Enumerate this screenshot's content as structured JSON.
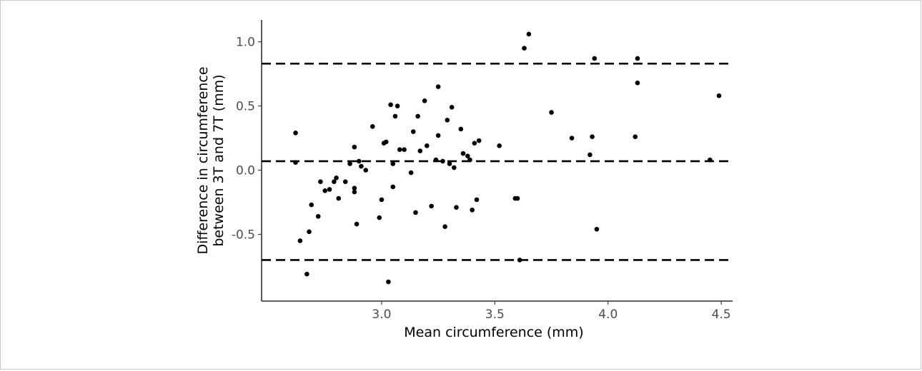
{
  "chart_data": {
    "type": "scatter",
    "title": "",
    "xlabel": "Mean circumference (mm)",
    "ylabel_lines": [
      "Difference in circumference",
      "between 3T and 7T (mm)"
    ],
    "xlim": [
      2.47,
      4.55
    ],
    "ylim": [
      -1.02,
      1.17
    ],
    "x_ticks": [
      {
        "value": 3.0,
        "label": "3.0"
      },
      {
        "value": 3.5,
        "label": "3.5"
      },
      {
        "value": 4.0,
        "label": "4.0"
      },
      {
        "value": 4.5,
        "label": "4.5"
      }
    ],
    "y_ticks": [
      {
        "value": 1.0,
        "label": "1.0"
      },
      {
        "value": 0.5,
        "label": "0.5"
      },
      {
        "value": 0.0,
        "label": "0.0"
      },
      {
        "value": -0.5,
        "label": "-0.5"
      }
    ],
    "reference_lines": [
      {
        "name": "upper limit of agreement",
        "y": 0.83
      },
      {
        "name": "mean difference",
        "y": 0.07
      },
      {
        "name": "lower limit of agreement",
        "y": -0.7
      }
    ],
    "grid": false,
    "legend": "none",
    "points": [
      {
        "x": 2.62,
        "y": 0.29
      },
      {
        "x": 2.62,
        "y": 0.06
      },
      {
        "x": 2.64,
        "y": -0.55
      },
      {
        "x": 2.67,
        "y": -0.81
      },
      {
        "x": 2.68,
        "y": -0.48
      },
      {
        "x": 2.69,
        "y": -0.27
      },
      {
        "x": 2.72,
        "y": -0.36
      },
      {
        "x": 2.73,
        "y": -0.09
      },
      {
        "x": 2.75,
        "y": -0.16
      },
      {
        "x": 2.77,
        "y": -0.15
      },
      {
        "x": 2.79,
        "y": -0.09
      },
      {
        "x": 2.8,
        "y": -0.06
      },
      {
        "x": 2.81,
        "y": -0.22
      },
      {
        "x": 2.84,
        "y": -0.09
      },
      {
        "x": 2.86,
        "y": 0.05
      },
      {
        "x": 2.88,
        "y": 0.18
      },
      {
        "x": 2.88,
        "y": -0.14
      },
      {
        "x": 2.88,
        "y": -0.17
      },
      {
        "x": 2.89,
        "y": -0.42
      },
      {
        "x": 2.9,
        "y": 0.07
      },
      {
        "x": 2.91,
        "y": 0.03
      },
      {
        "x": 2.93,
        "y": 0.0
      },
      {
        "x": 2.96,
        "y": 0.34
      },
      {
        "x": 2.99,
        "y": -0.37
      },
      {
        "x": 3.0,
        "y": -0.23
      },
      {
        "x": 3.01,
        "y": 0.21
      },
      {
        "x": 3.02,
        "y": 0.22
      },
      {
        "x": 3.03,
        "y": -0.87
      },
      {
        "x": 3.04,
        "y": 0.51
      },
      {
        "x": 3.05,
        "y": -0.13
      },
      {
        "x": 3.05,
        "y": 0.05
      },
      {
        "x": 3.06,
        "y": 0.42
      },
      {
        "x": 3.07,
        "y": 0.5
      },
      {
        "x": 3.08,
        "y": 0.16
      },
      {
        "x": 3.1,
        "y": 0.16
      },
      {
        "x": 3.13,
        "y": -0.02
      },
      {
        "x": 3.14,
        "y": 0.3
      },
      {
        "x": 3.15,
        "y": -0.33
      },
      {
        "x": 3.16,
        "y": 0.42
      },
      {
        "x": 3.17,
        "y": 0.15
      },
      {
        "x": 3.19,
        "y": 0.54
      },
      {
        "x": 3.2,
        "y": 0.19
      },
      {
        "x": 3.22,
        "y": -0.28
      },
      {
        "x": 3.24,
        "y": 0.08
      },
      {
        "x": 3.25,
        "y": 0.65
      },
      {
        "x": 3.25,
        "y": 0.27
      },
      {
        "x": 3.27,
        "y": 0.07
      },
      {
        "x": 3.28,
        "y": -0.44
      },
      {
        "x": 3.29,
        "y": 0.39
      },
      {
        "x": 3.3,
        "y": 0.05
      },
      {
        "x": 3.31,
        "y": 0.49
      },
      {
        "x": 3.32,
        "y": 0.02
      },
      {
        "x": 3.33,
        "y": -0.29
      },
      {
        "x": 3.35,
        "y": 0.32
      },
      {
        "x": 3.36,
        "y": 0.13
      },
      {
        "x": 3.38,
        "y": 0.11
      },
      {
        "x": 3.39,
        "y": 0.08
      },
      {
        "x": 3.4,
        "y": -0.31
      },
      {
        "x": 3.41,
        "y": 0.21
      },
      {
        "x": 3.42,
        "y": -0.23
      },
      {
        "x": 3.43,
        "y": 0.23
      },
      {
        "x": 3.52,
        "y": 0.19
      },
      {
        "x": 3.59,
        "y": -0.22
      },
      {
        "x": 3.6,
        "y": -0.22
      },
      {
        "x": 3.61,
        "y": -0.7
      },
      {
        "x": 3.63,
        "y": 0.95
      },
      {
        "x": 3.65,
        "y": 1.06
      },
      {
        "x": 3.75,
        "y": 0.45
      },
      {
        "x": 3.84,
        "y": 0.25
      },
      {
        "x": 3.92,
        "y": 0.12
      },
      {
        "x": 3.93,
        "y": 0.26
      },
      {
        "x": 3.94,
        "y": 0.87
      },
      {
        "x": 3.95,
        "y": -0.46
      },
      {
        "x": 4.12,
        "y": 0.26
      },
      {
        "x": 4.13,
        "y": 0.68
      },
      {
        "x": 4.13,
        "y": 0.87
      },
      {
        "x": 4.45,
        "y": 0.08
      },
      {
        "x": 4.49,
        "y": 0.58
      }
    ]
  }
}
